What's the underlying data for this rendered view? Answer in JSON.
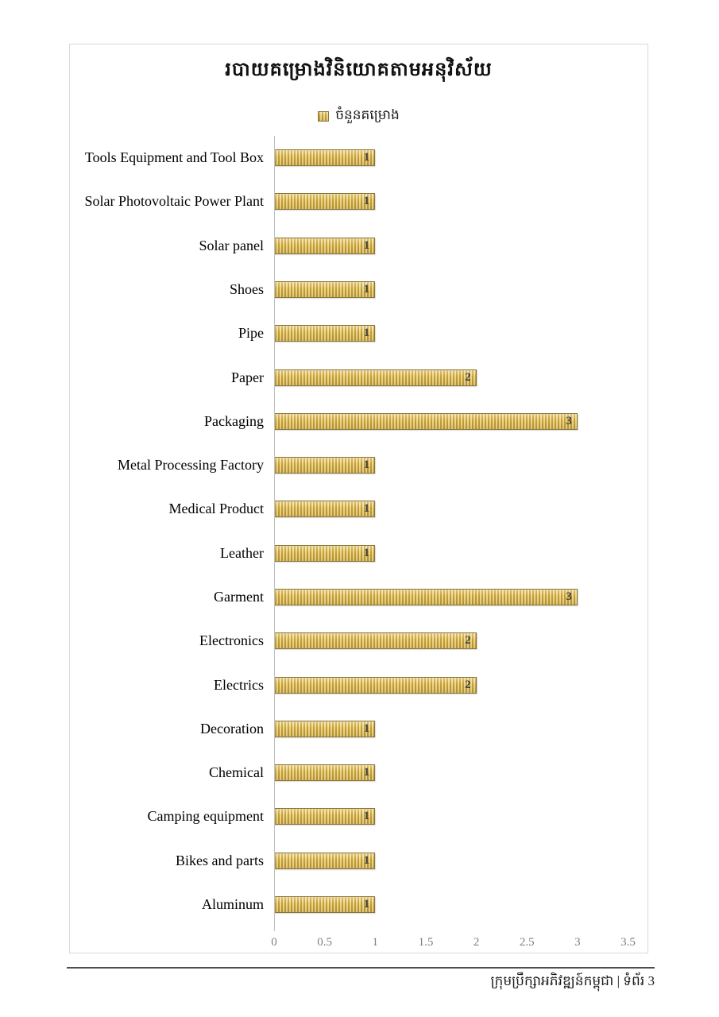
{
  "page": {
    "footer": {
      "text": "ក្រុមប្រឹក្សាអភិវឌ្ឍន៍កម្ពុជា | ទំព័រ 3"
    }
  },
  "chart_data": {
    "type": "bar",
    "orientation": "horizontal",
    "title": "របាយគម្រោងវិនិយោគតាមអនុវិស័យ",
    "legend": [
      {
        "label": "ចំនួនគម្រោង",
        "pattern": "vertical-stripes"
      }
    ],
    "legend_position": "top-center",
    "categories": [
      "Tools Equipment and Tool Box",
      "Solar Photovoltaic Power Plant",
      "Solar panel",
      "Shoes",
      "Pipe",
      "Paper",
      "Packaging",
      "Metal Processing Factory",
      "Medical Product",
      "Leather",
      "Garment",
      "Electronics",
      "Electrics",
      "Decoration",
      "Chemical",
      "Camping equipment",
      "Bikes and parts",
      "Aluminum"
    ],
    "values": [
      1,
      1,
      1,
      1,
      1,
      2,
      3,
      1,
      1,
      1,
      3,
      2,
      2,
      1,
      1,
      1,
      1,
      1
    ],
    "data_labels": true,
    "x_ticks": [
      "0",
      "0.5",
      "1",
      "1.5",
      "2",
      "2.5",
      "3",
      "3.5"
    ],
    "xlim": [
      0,
      3.5
    ],
    "grid": false,
    "colors": {
      "bar_dark": "#c69e33",
      "bar_light": "#eed98f",
      "bar_border": "#8b7535",
      "axis_line": "#bfbfbf",
      "tick_text": "#808080",
      "value_text": "#3f3f3f"
    }
  }
}
